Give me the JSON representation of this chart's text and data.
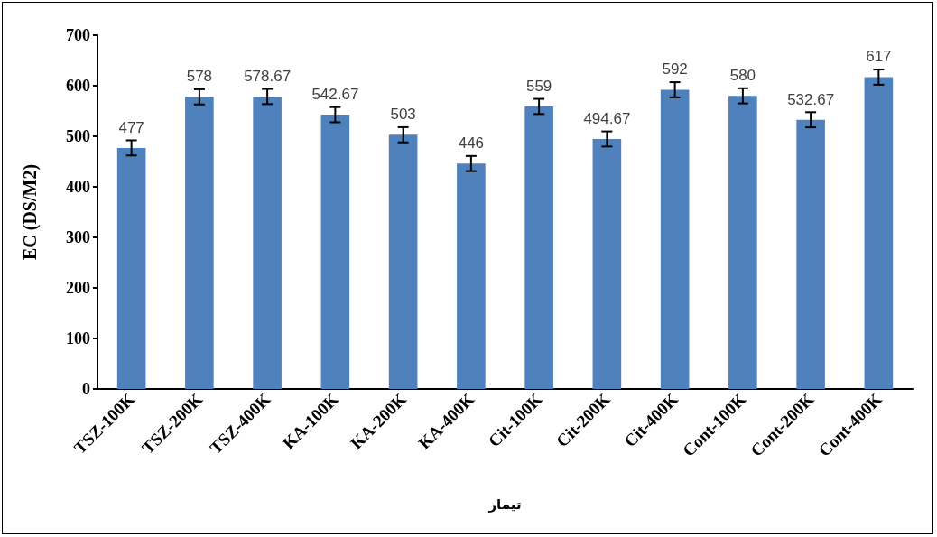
{
  "chart_data": {
    "type": "bar",
    "xlabel": "تیمار",
    "ylabel": "EC (DS/M2)",
    "categories": [
      "TSZ-100K",
      "TSZ-200K",
      "TSZ-400K",
      "KA-100K",
      "KA-200K",
      "KA-400K",
      "Cit-100K",
      "Cit-200K",
      "Cit-400K",
      "Cont-100K",
      "Cont-200K",
      "Cont-400K"
    ],
    "values": [
      477,
      578,
      578.67,
      542.67,
      503,
      446,
      559,
      494.67,
      592,
      580,
      532.67,
      617
    ],
    "errors": [
      15,
      15,
      15,
      15,
      15,
      15,
      15,
      15,
      15,
      15,
      15,
      15
    ],
    "color": "#4f81bd",
    "ylim": [
      0,
      700
    ],
    "yticks": [
      0,
      100,
      200,
      300,
      400,
      500,
      600,
      700
    ],
    "grid": false,
    "data_labels": true
  }
}
